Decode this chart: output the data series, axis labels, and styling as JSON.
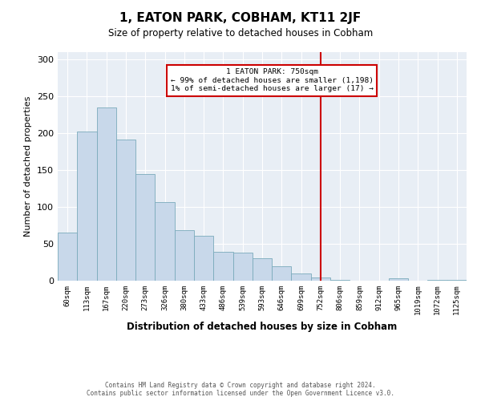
{
  "title": "1, EATON PARK, COBHAM, KT11 2JF",
  "subtitle": "Size of property relative to detached houses in Cobham",
  "xlabel": "Distribution of detached houses by size in Cobham",
  "ylabel": "Number of detached properties",
  "bar_labels": [
    "60sqm",
    "113sqm",
    "167sqm",
    "220sqm",
    "273sqm",
    "326sqm",
    "380sqm",
    "433sqm",
    "486sqm",
    "539sqm",
    "593sqm",
    "646sqm",
    "699sqm",
    "752sqm",
    "806sqm",
    "859sqm",
    "912sqm",
    "965sqm",
    "1019sqm",
    "1072sqm",
    "1125sqm"
  ],
  "bar_values": [
    65,
    202,
    235,
    191,
    145,
    107,
    69,
    61,
    39,
    38,
    31,
    20,
    10,
    4,
    1,
    0,
    0,
    3,
    0,
    1,
    1
  ],
  "bar_color": "#c8d8ea",
  "bar_edge_color": "#7aaabb",
  "vline_x_index": 13,
  "vline_color": "#cc0000",
  "annotation_title": "1 EATON PARK: 750sqm",
  "annotation_line1": "← 99% of detached houses are smaller (1,198)",
  "annotation_line2": "1% of semi-detached houses are larger (17) →",
  "annotation_box_edgecolor": "#cc0000",
  "annotation_bg": "#ffffff",
  "ylim": [
    0,
    310
  ],
  "yticks": [
    0,
    50,
    100,
    150,
    200,
    250,
    300
  ],
  "footer_line1": "Contains HM Land Registry data © Crown copyright and database right 2024.",
  "footer_line2": "Contains public sector information licensed under the Open Government Licence v3.0.",
  "fig_bg_color": "#ffffff",
  "plot_bg_color": "#e8eef5"
}
